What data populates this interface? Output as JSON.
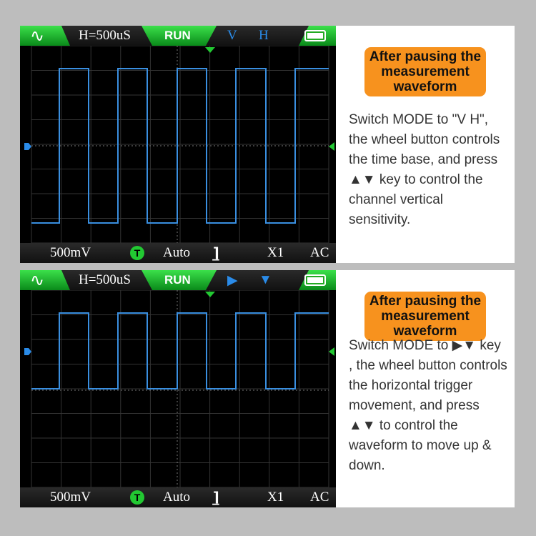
{
  "panels": [
    {
      "top": {
        "wave_icon": "sine-wave-icon",
        "timebase": "H=500uS",
        "status": "RUN",
        "mode_left": "V",
        "mode_right": "H",
        "battery_icon": "battery-icon"
      },
      "bottom": {
        "volts": "500mV",
        "trigger_icon": "T",
        "trigger_mode": "Auto",
        "edge_icon": "falling-edge-icon",
        "probe": "X1",
        "coupling": "AC"
      },
      "heading": "After pausing the measurement waveform",
      "text": "Switch MODE to \"V H\", the wheel button controls the time base, and press ▲▼ key to control the channel vertical sensitivity."
    },
    {
      "top": {
        "wave_icon": "sine-wave-icon",
        "timebase": "H=500uS",
        "status": "RUN",
        "mode_left": "▶",
        "mode_right": "▼",
        "battery_icon": "battery-icon"
      },
      "bottom": {
        "volts": "500mV",
        "trigger_icon": "T",
        "trigger_mode": "Auto",
        "edge_icon": "falling-edge-icon",
        "probe": "X1",
        "coupling": "AC"
      },
      "heading": "After pausing the measurement waveform",
      "text": "Switch MODE to ▶▼ key , the wheel button controls the horizontal trigger movement, and press ▲▼ to control the waveform to move up & down."
    }
  ],
  "colors": {
    "accent_green": "#22c832",
    "waveform": "#3a8fe0",
    "badge": "#f7921e"
  }
}
